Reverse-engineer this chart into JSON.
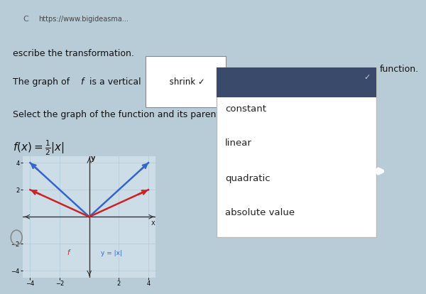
{
  "page_bg": "#b8ccd8",
  "graph_bg": "#ccdde8",
  "graph_xlim": [
    -4.5,
    4.5
  ],
  "graph_ylim": [
    -4.5,
    4.5
  ],
  "xticks": [
    -4,
    -2,
    2,
    4
  ],
  "yticks": [
    -4,
    -2,
    2,
    4
  ],
  "xlabel": "x",
  "ylabel": "y",
  "parent_color": "#3366cc",
  "f_color": "#cc2222",
  "text_f": "f",
  "text_parent": "y = |x|",
  "dropdown_items": [
    "constant",
    "linear",
    "quadratic",
    "absolute value"
  ],
  "dropdown_selected_color": "#3a4a6b",
  "browser_url": "https://www.bigideasma...",
  "browser_bg": "#c8d8e4",
  "dropdown_bg": "white",
  "dropdown_border": "#aaaaaa",
  "nav_arrow_color": "#2299dd"
}
